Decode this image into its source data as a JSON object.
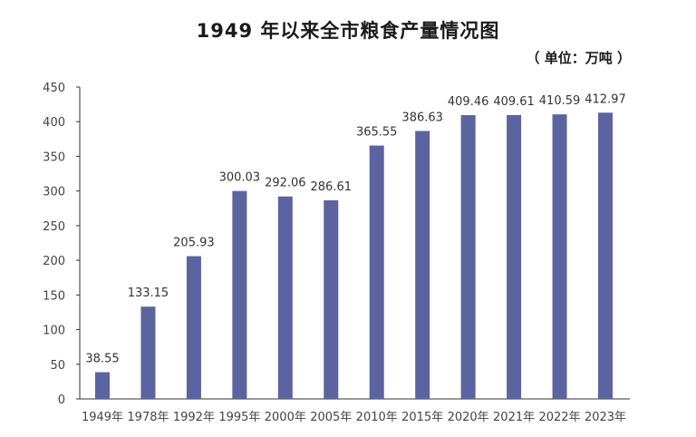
{
  "chart_data": {
    "type": "bar",
    "title": "1949 年以来全市粮食产量情况图",
    "unit_label": "（ 单位：万吨 ）",
    "categories": [
      "1949年",
      "1978年",
      "1992年",
      "1995年",
      "2000年",
      "2005年",
      "2010年",
      "2015年",
      "2020年",
      "2021年",
      "2022年",
      "2023年"
    ],
    "values": [
      38.55,
      133.15,
      205.93,
      300.03,
      292.06,
      286.61,
      365.55,
      386.63,
      409.46,
      409.61,
      410.59,
      412.97
    ],
    "value_labels": [
      "38.55",
      "133.15",
      "205.93",
      "300.03",
      "292.06",
      "286.61",
      "365.55",
      "386.63",
      "409.46",
      "409.61",
      "410.59",
      "412.97"
    ],
    "ylim": [
      0,
      450
    ],
    "yticks": [
      0,
      50,
      100,
      150,
      200,
      250,
      300,
      350,
      400,
      450
    ],
    "ytick_labels": [
      "0",
      "50",
      "100",
      "150",
      "200",
      "250",
      "300",
      "350",
      "400",
      "450"
    ],
    "xlabel": "",
    "ylabel": "",
    "grid": false,
    "bar_color": "#5b64a0",
    "axis_color": "#333333"
  }
}
